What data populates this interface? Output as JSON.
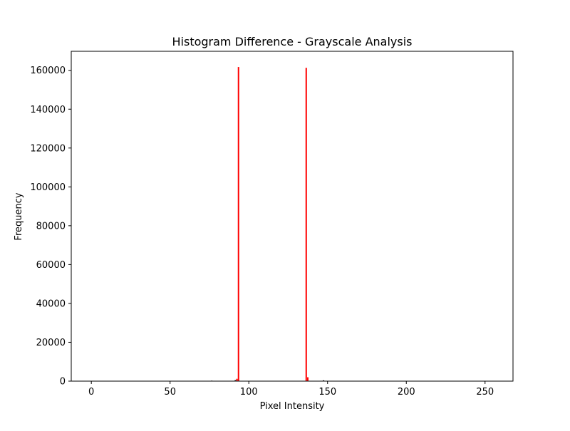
{
  "chart_data": {
    "type": "bar",
    "title": "Histogram Difference - Grayscale Analysis",
    "xlabel": "Pixel Intensity",
    "ylabel": "Frequency",
    "xlim": [
      -12.75,
      267.75
    ],
    "ylim": [
      0,
      169800
    ],
    "x_ticks": [
      0,
      50,
      100,
      150,
      200,
      250
    ],
    "y_ticks": [
      0,
      20000,
      40000,
      60000,
      80000,
      100000,
      120000,
      140000,
      160000
    ],
    "grid": false,
    "legend": "none",
    "series": [
      {
        "color": "#ff0000",
        "points": [
          {
            "x": 92,
            "y": 1200
          },
          {
            "x": 93,
            "y": 161700
          },
          {
            "x": 136,
            "y": 161300
          },
          {
            "x": 137,
            "y": 2000
          }
        ]
      },
      {
        "color": "#000000",
        "points": [
          {
            "x": 76,
            "y": 250
          },
          {
            "x": 91,
            "y": 500
          },
          {
            "x": 147,
            "y": 400
          }
        ]
      }
    ]
  }
}
